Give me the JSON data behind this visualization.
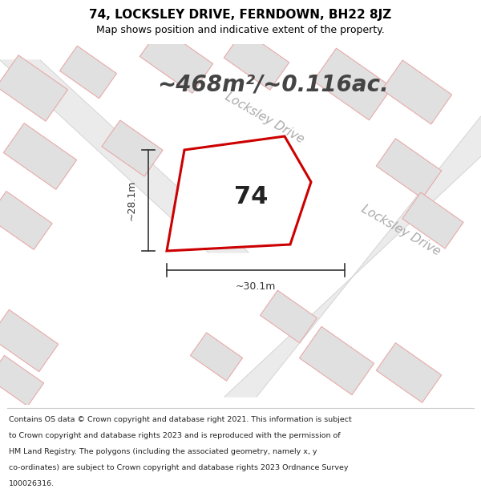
{
  "title": "74, LOCKSLEY DRIVE, FERNDOWN, BH22 8JZ",
  "subtitle": "Map shows position and indicative extent of the property.",
  "area_text": "~468m²/~0.116ac.",
  "property_number": "74",
  "dim_left": "~28.1m",
  "dim_bottom": "~30.1m",
  "road_label1": "Locksley Drive",
  "road_label2": "Locksley Drive",
  "footer_lines": [
    "Contains OS data © Crown copyright and database right 2021. This information is subject",
    "to Crown copyright and database rights 2023 and is reproduced with the permission of",
    "HM Land Registry. The polygons (including the associated geometry, namely x, y",
    "co-ordinates) are subject to Crown copyright and database rights 2023 Ordnance Survey",
    "100026316."
  ],
  "map_bg": "#f7f7f7",
  "building_fill": "#e0e0e0",
  "building_edge": "#e8aaaa",
  "road_outline": "#d0d0d0",
  "road_band": "#eeeeee",
  "property_edge": "#cc0000",
  "property_fill": "#f0f0f0",
  "title_color": "#000000",
  "dim_color": "#333333",
  "road_text_color": "#aaaaaa",
  "area_text_color": "#444444",
  "footer_color": "#222222",
  "title_fontsize": 11,
  "subtitle_fontsize": 9,
  "area_fontsize": 20,
  "number_fontsize": 22,
  "dim_fontsize": 9,
  "road_fontsize": 11,
  "footer_fontsize": 6.8
}
